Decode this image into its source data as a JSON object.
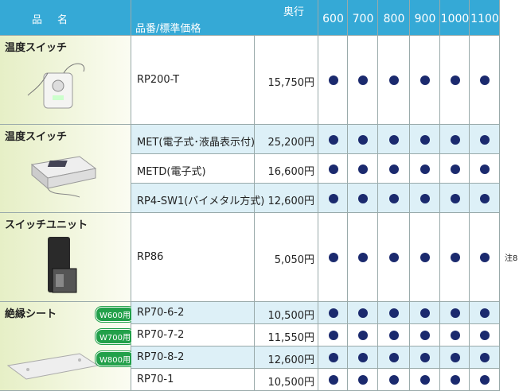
{
  "header": {
    "name": "品　名",
    "depth_label": "奥行",
    "part_price": "品番/標準価格",
    "depths": [
      "600",
      "700",
      "800",
      "900",
      "1000",
      "1100"
    ]
  },
  "groups": [
    {
      "name": "温度スイッチ",
      "items": [
        {
          "part": "RP200-T",
          "price": "15,750円",
          "available": [
            true,
            true,
            true,
            true,
            true,
            true
          ]
        }
      ]
    },
    {
      "name": "温度スイッチ",
      "items": [
        {
          "part": "MET(電子式･液晶表示付)",
          "price": "25,200円",
          "available": [
            true,
            true,
            true,
            true,
            true,
            true
          ]
        },
        {
          "part": "METD(電子式)",
          "price": "16,600円",
          "available": [
            true,
            true,
            true,
            true,
            true,
            true
          ]
        },
        {
          "part": "RP4-SW1(バイメタル方式)",
          "price": "12,600円",
          "available": [
            true,
            true,
            true,
            true,
            true,
            true
          ]
        }
      ]
    },
    {
      "name": "スイッチユニット",
      "note": "注8",
      "items": [
        {
          "part": "RP86",
          "price": "5,050円",
          "available": [
            true,
            true,
            true,
            true,
            true,
            true
          ]
        }
      ]
    },
    {
      "name": "絶縁シート",
      "badges": [
        "W600用",
        "W700用",
        "W800用"
      ],
      "items": [
        {
          "part": "RP70-6-2",
          "price": "10,500円",
          "available": [
            true,
            true,
            true,
            true,
            true,
            true
          ]
        },
        {
          "part": "RP70-7-2",
          "price": "11,550円",
          "available": [
            true,
            true,
            true,
            true,
            true,
            true
          ]
        },
        {
          "part": "RP70-8-2",
          "price": "12,600円",
          "available": [
            true,
            true,
            true,
            true,
            true,
            true
          ]
        },
        {
          "part": "RP70-1",
          "price": "10,500円",
          "available": [
            true,
            true,
            true,
            true,
            true,
            true
          ]
        }
      ]
    }
  ]
}
